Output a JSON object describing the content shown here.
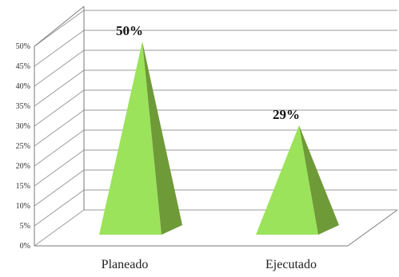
{
  "chart_data": {
    "type": "bar",
    "style": "3d-pyramid",
    "categories": [
      "Planeado",
      "Ejecutado"
    ],
    "values": [
      50,
      29
    ],
    "data_labels": [
      "50%",
      "29%"
    ],
    "y_ticks": [
      "0%",
      "5%",
      "10%",
      "15%",
      "20%",
      "25%",
      "30%",
      "35%",
      "40%",
      "45%",
      "50%"
    ],
    "ylim": [
      0,
      50
    ],
    "grid": true,
    "legend": "none",
    "colors": {
      "front": "#9be35a",
      "side": "#6f9a38",
      "grid": "#9a9a9a"
    }
  }
}
